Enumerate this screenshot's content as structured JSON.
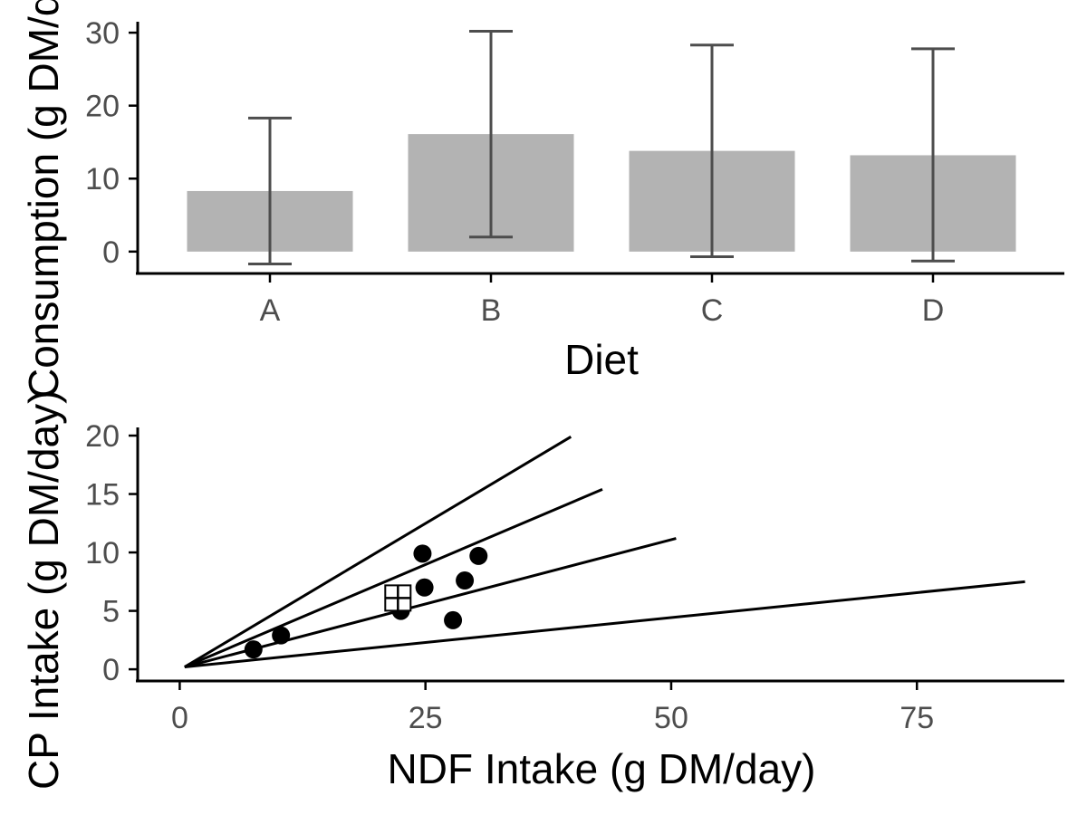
{
  "chart_data": [
    {
      "type": "bar",
      "categories": [
        "A",
        "B",
        "C",
        "D"
      ],
      "values": [
        8.3,
        16.1,
        13.8,
        13.2
      ],
      "error_low": [
        -1.7,
        2.0,
        -0.7,
        -1.3
      ],
      "error_high": [
        18.3,
        30.2,
        28.3,
        27.8
      ],
      "xlabel": "Diet",
      "ylabel": "Consumption (g DM/day)",
      "ylim": [
        -3,
        31.5
      ],
      "yticks": [
        "0",
        "10",
        "20",
        "30"
      ],
      "grid": false,
      "colors": {
        "bar": "#b3b3b3",
        "errorbar": "#4d4d4d"
      }
    },
    {
      "type": "scatter",
      "xlabel": "NDF Intake (g DM/day)",
      "ylabel": "CP Intake (g DM/day)",
      "xlim": [
        -4,
        90
      ],
      "ylim": [
        -1,
        20.7
      ],
      "xticks": [
        "0",
        "25",
        "50",
        "75"
      ],
      "yticks": [
        "0",
        "5",
        "10",
        "15",
        "20"
      ],
      "grid": false,
      "points": [
        {
          "x": 7.5,
          "y": 1.7
        },
        {
          "x": 10.3,
          "y": 2.9
        },
        {
          "x": 22.5,
          "y": 5.0
        },
        {
          "x": 24.9,
          "y": 7.0
        },
        {
          "x": 24.7,
          "y": 9.9
        },
        {
          "x": 27.8,
          "y": 4.2
        },
        {
          "x": 29.0,
          "y": 7.6
        },
        {
          "x": 30.4,
          "y": 9.7
        }
      ],
      "mean_marker": {
        "x": 22.2,
        "y": 6.1,
        "shape": "square-cross"
      },
      "reference_lines": [
        {
          "from": [
            0.5,
            0.2
          ],
          "to": [
            39.8,
            19.9
          ]
        },
        {
          "from": [
            0.5,
            0.2
          ],
          "to": [
            43.0,
            15.4
          ]
        },
        {
          "from": [
            0.5,
            0.2
          ],
          "to": [
            50.5,
            11.2
          ]
        },
        {
          "from": [
            0.5,
            0.2
          ],
          "to": [
            86.0,
            7.5
          ]
        }
      ]
    }
  ]
}
